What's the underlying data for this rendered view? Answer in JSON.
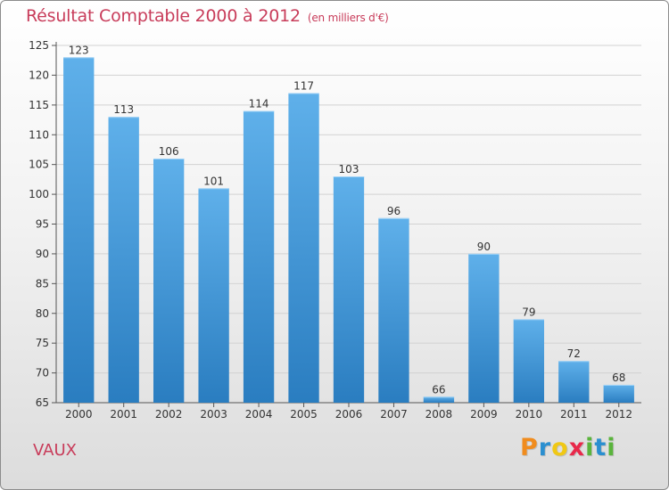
{
  "header": {
    "title": "Résultat Comptable 2000 à 2012",
    "unit": "(en milliers d'€)"
  },
  "footer": {
    "commune": "VAUX",
    "logo_letters": [
      "P",
      "r",
      "o",
      "x",
      "i",
      "t",
      "i"
    ],
    "logo_colors": [
      "#f08c1e",
      "#2a8fd0",
      "#f0c814",
      "#e8284a",
      "#5ab43c",
      "#2a8fd0",
      "#5ab43c"
    ]
  },
  "colors": {
    "bar_light": "#5fb0ea",
    "bar_dark": "#2a7dc0",
    "title": "#c83c5a",
    "grid": "#d2d2d2"
  },
  "chart_data": {
    "type": "bar",
    "title": "Résultat Comptable 2000 à 2012",
    "subtitle": "(en milliers d'€)",
    "xlabel": "",
    "ylabel": "",
    "categories": [
      "2000",
      "2001",
      "2002",
      "2003",
      "2004",
      "2005",
      "2006",
      "2007",
      "2008",
      "2009",
      "2010",
      "2011",
      "2012"
    ],
    "values": [
      123,
      113,
      106,
      101,
      114,
      117,
      103,
      96,
      66,
      90,
      79,
      72,
      68
    ],
    "ylim": [
      65,
      125
    ],
    "yticks": [
      65,
      70,
      75,
      80,
      85,
      90,
      95,
      100,
      105,
      110,
      115,
      120,
      125
    ],
    "grid": true
  }
}
